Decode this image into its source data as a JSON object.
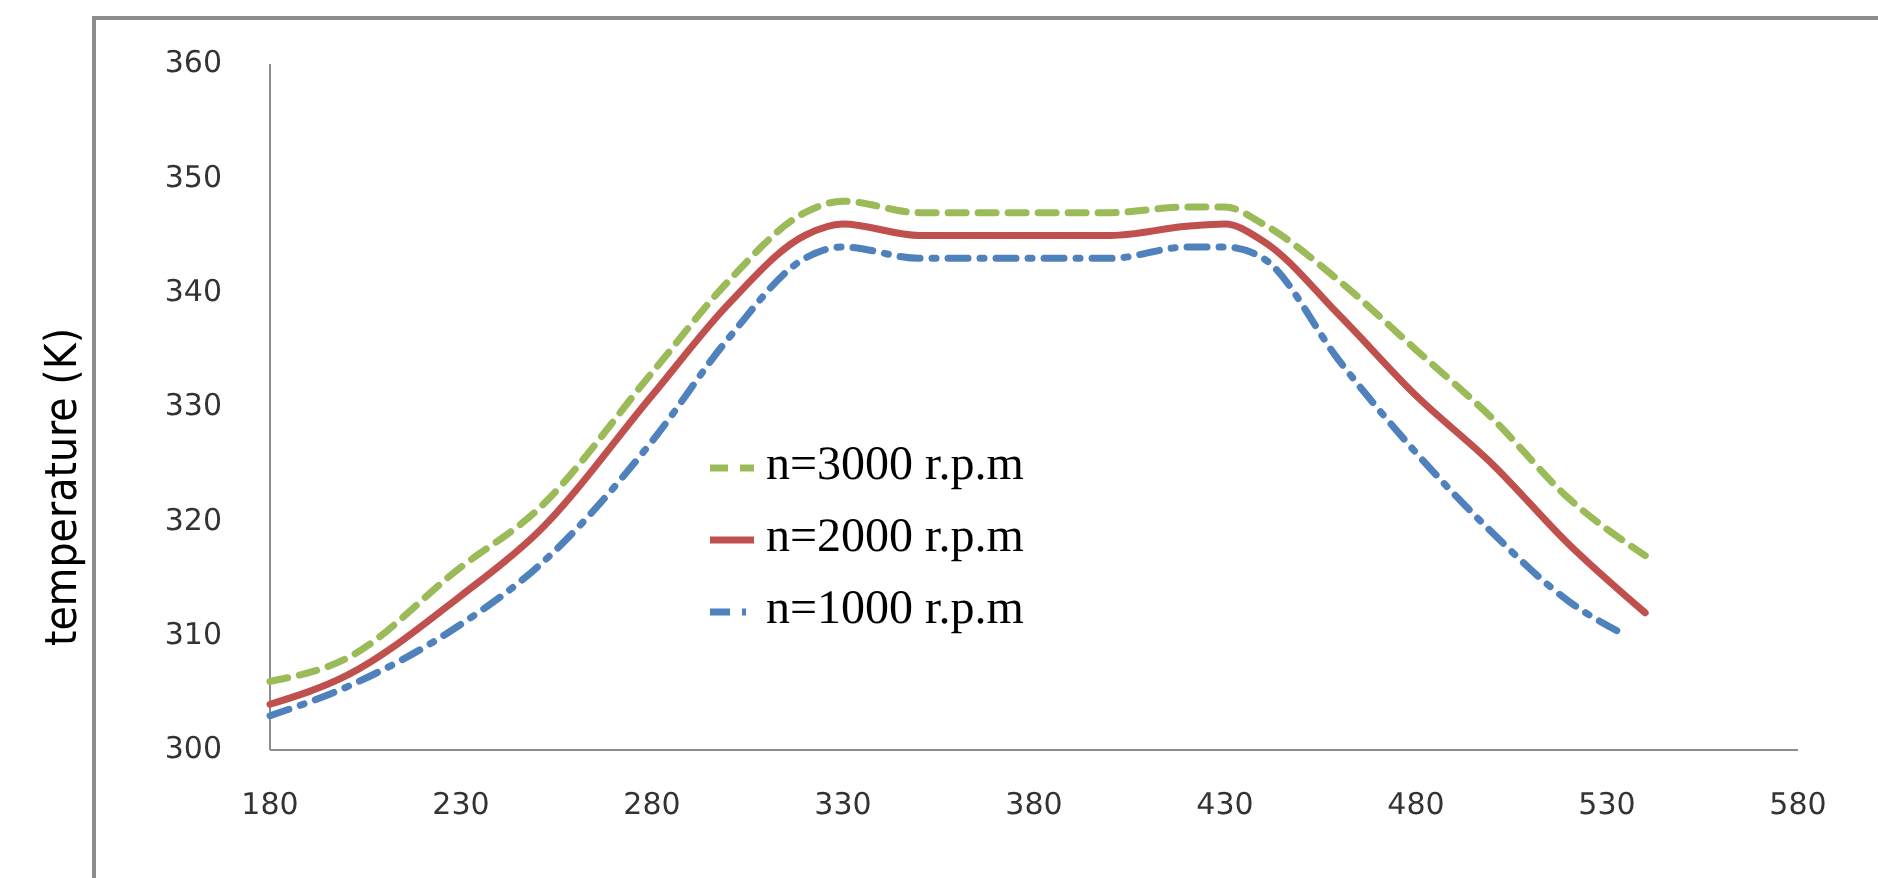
{
  "chart_data": {
    "type": "line",
    "ylabel": "temperature (K)",
    "x": [
      180,
      200,
      230,
      250,
      280,
      300,
      320,
      330,
      350,
      380,
      400,
      420,
      430,
      440,
      460,
      480,
      500,
      520,
      540
    ],
    "xlim": [
      180,
      580
    ],
    "xticks": [
      180,
      230,
      280,
      330,
      380,
      430,
      480,
      530,
      580
    ],
    "ylim": [
      300,
      360
    ],
    "yticks": [
      300,
      310,
      320,
      330,
      340,
      350,
      360
    ],
    "grid": false,
    "legend": "center",
    "marker": "none",
    "series": [
      {
        "name": "n=3000 r.p.m",
        "color": "#9bbb59",
        "line_style": "dashed",
        "values": [
          306,
          308,
          316,
          321,
          333,
          341,
          347,
          348,
          347,
          347,
          347,
          347.5,
          347.5,
          346,
          341,
          335,
          329,
          322,
          317
        ]
      },
      {
        "name": "n=2000 r.p.m",
        "color": "#c0504d",
        "line_style": "solid",
        "values": [
          304,
          306.5,
          313.5,
          319,
          331,
          339,
          345,
          346,
          345,
          345,
          345,
          345.8,
          346,
          344.5,
          338,
          331,
          325,
          318,
          312
        ]
      },
      {
        "name": "n=1000 r.p.m",
        "color": "#4f81bd",
        "line_style": "dashdot",
        "x": [
          180,
          200,
          230,
          250,
          280,
          300,
          320,
          330,
          350,
          380,
          400,
          420,
          430,
          440,
          460,
          480,
          500,
          520,
          535
        ],
        "values": [
          303,
          305.5,
          311,
          316,
          327,
          336,
          343,
          344,
          343,
          343,
          343,
          344,
          344,
          343,
          334,
          326,
          319,
          313,
          310
        ]
      }
    ]
  }
}
